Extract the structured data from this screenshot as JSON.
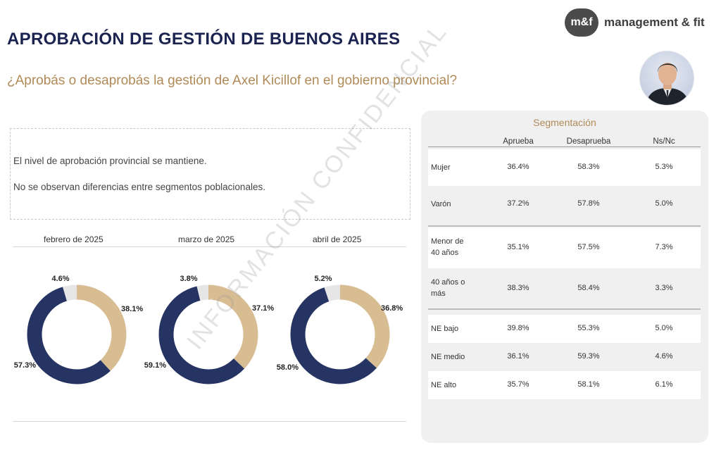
{
  "header": {
    "title": "APROBACIÓN DE GESTIÓN DE BUENOS AIRES",
    "question": "¿Aprobás o desaprobás la gestión de Axel Kicillof en el gobierno provincial?",
    "logo_badge": "m&f",
    "logo_text": "management & fit"
  },
  "summary": {
    "line1": "El nivel de aprobación provincial se mantiene.",
    "line2": "No se observan diferencias entre segmentos poblacionales."
  },
  "watermark": "INFORMACIÓN CONFIDENCIAL",
  "colors": {
    "aprueba": "#d8bd92",
    "desaprueba": "#263463",
    "nsnc": "#e6e6e6",
    "accent": "#b08a57",
    "title": "#1b2450"
  },
  "chart_data": [
    {
      "type": "pie",
      "title": "febrero de 2025",
      "slices": [
        {
          "name": "Aprueba",
          "value": 38.1,
          "label": "38.1%"
        },
        {
          "name": "Desaprueba",
          "value": 57.3,
          "label": "57.3%"
        },
        {
          "name": "Ns/Nc",
          "value": 4.6,
          "label": "4.6%"
        }
      ]
    },
    {
      "type": "pie",
      "title": "marzo de 2025",
      "slices": [
        {
          "name": "Aprueba",
          "value": 37.1,
          "label": "37.1%"
        },
        {
          "name": "Desaprueba",
          "value": 59.1,
          "label": "59.1%"
        },
        {
          "name": "Ns/Nc",
          "value": 3.8,
          "label": "3.8%"
        }
      ]
    },
    {
      "type": "pie",
      "title": "abril de 2025",
      "slices": [
        {
          "name": "Aprueba",
          "value": 36.8,
          "label": "36.8%"
        },
        {
          "name": "Desaprueba",
          "value": 58.0,
          "label": "58.0%"
        },
        {
          "name": "Ns/Nc",
          "value": 5.2,
          "label": "5.2%"
        }
      ]
    },
    {
      "type": "table",
      "title": "Segmentación",
      "columns": [
        "Aprueba",
        "Desaprueba",
        "Ns/Nc"
      ],
      "rows": [
        {
          "label": [
            "Mujer"
          ],
          "values": [
            "36.4%",
            "58.3%",
            "5.3%"
          ]
        },
        {
          "label": [
            "Varón"
          ],
          "values": [
            "37.2%",
            "57.8%",
            "5.0%"
          ]
        },
        {
          "label": [
            "Menor de",
            "40 años"
          ],
          "values": [
            "35.1%",
            "57.5%",
            "7.3%"
          ]
        },
        {
          "label": [
            "40 años o",
            "más"
          ],
          "values": [
            "38.3%",
            "58.4%",
            "3.3%"
          ]
        },
        {
          "label": [
            "NE bajo"
          ],
          "values": [
            "39.8%",
            "55.3%",
            "5.0%"
          ]
        },
        {
          "label": [
            "NE medio"
          ],
          "values": [
            "36.1%",
            "59.3%",
            "4.6%"
          ]
        },
        {
          "label": [
            "NE alto"
          ],
          "values": [
            "35.7%",
            "58.1%",
            "6.1%"
          ]
        }
      ]
    }
  ]
}
